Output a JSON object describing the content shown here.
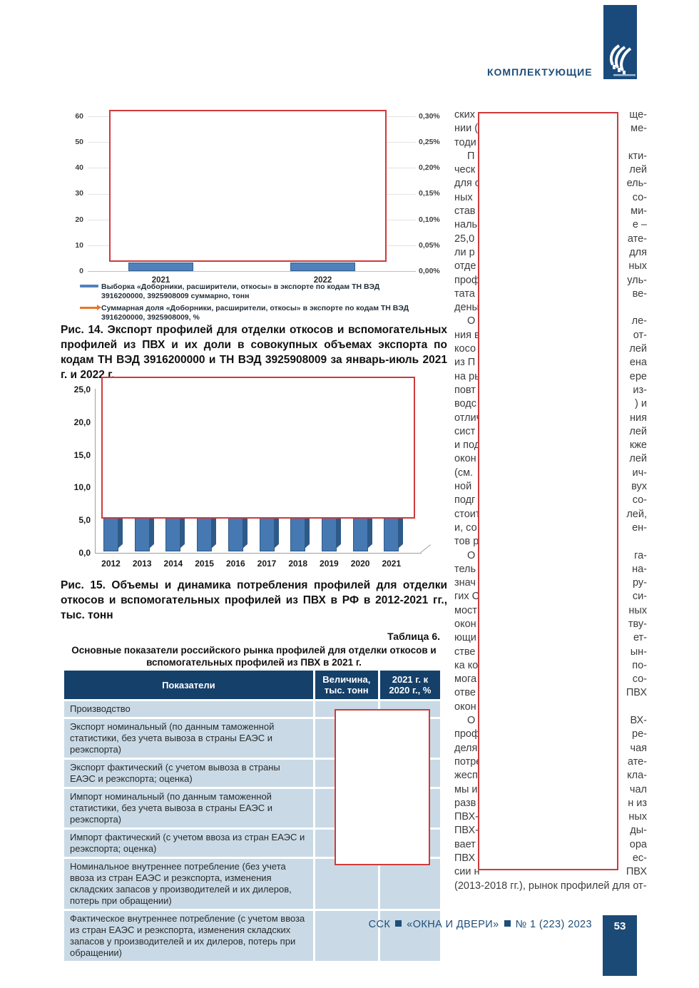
{
  "header": {
    "section_label": "КОМПЛЕКТУЮЩИЕ",
    "logo_color": "#1a4a7c"
  },
  "figure14": {
    "caption": "Рис. 14. Экспорт профилей для отделки откосов и вспомогательных профилей из ПВХ и их доли в совокупных объемах экспорта по кодам ТН ВЭД 3916200000 и ТН ВЭД 3925908009 за январь-июль 2021 г. и 2022 г.",
    "left_ticks": [
      "60",
      "50",
      "40",
      "30",
      "20",
      "10",
      "0"
    ],
    "right_ticks": [
      "0,30%",
      "0,25%",
      "0,20%",
      "0,15%",
      "0,10%",
      "0,05%",
      "0,00%"
    ],
    "categories": [
      "2021",
      "2022"
    ],
    "legend_items": [
      {
        "marker": "bar-marker-icon",
        "color": "#4f81bd",
        "label": "Выборка «Доборники, расширители, откосы» в экспорте по кодам ТН ВЭД 3916200000, 3925908009 суммарно, тонн"
      },
      {
        "marker": "line-arrow-marker-icon",
        "color": "#e8762c",
        "label": "Суммарная доля «Доборники, расширители, откосы» в экспорте по кодам ТН ВЭД 3916200000, 3925908009, %"
      }
    ]
  },
  "figure15": {
    "caption": "Рис. 15. Объемы и динамика потребления профилей для отделки откосов и вспомогательных профилей из ПВХ в РФ в 2012-2021 гг., тыс. тонн",
    "y_ticks": [
      "25,0",
      "20,0",
      "15,0",
      "10,0",
      "5,0",
      "0,0"
    ],
    "categories": [
      "2012",
      "2013",
      "2014",
      "2015",
      "2016",
      "2017",
      "2018",
      "2019",
      "2020",
      "2021"
    ]
  },
  "chart_data": [
    {
      "type": "bar",
      "figure": "Рис. 14",
      "title": "Экспорт профилей для отделки откосов и вспомогательных профилей из ПВХ и их доли в совокупных объемах экспорта по кодам ТН ВЭД 3916200000 и ТН ВЭД 3925908009 за январь-июль 2021 г. и 2022 г.",
      "categories": [
        "2021",
        "2022"
      ],
      "series": [
        {
          "name": "Выборка «Доборники, расширители, откосы» в экспорте по кодам ТН ВЭД 3916200000, 3925908009 суммарно, тонн",
          "type": "bar",
          "color": "#4f81bd",
          "values": [
            null,
            null
          ],
          "note": "значения скрыты красной рамкой (redacted)"
        },
        {
          "name": "Суммарная доля «Доборники, расширители, откосы» в экспорте по кодам ТН ВЭД 3916200000, 3925908009, %",
          "type": "line",
          "color": "#e8762c",
          "values": [
            null,
            null
          ],
          "note": "линия скрыта красной рамкой (redacted)"
        }
      ],
      "left_axis": {
        "ticks": [
          0,
          10,
          20,
          30,
          40,
          50,
          60
        ],
        "ylim": [
          0,
          60
        ]
      },
      "right_axis": {
        "ticks": [
          "0,00%",
          "0,05%",
          "0,10%",
          "0,15%",
          "0,20%",
          "0,25%",
          "0,30%"
        ],
        "ylim_pct": [
          0,
          0.3
        ]
      },
      "grid": true,
      "legend_position": "bottom"
    },
    {
      "type": "bar",
      "figure": "Рис. 15",
      "title": "Объемы и динамика потребления профилей для отделки откосов и вспомогательных профилей из ПВХ в РФ в 2012-2021 гг., тыс. тонн",
      "categories": [
        "2012",
        "2013",
        "2014",
        "2015",
        "2016",
        "2017",
        "2018",
        "2019",
        "2020",
        "2021"
      ],
      "values": [
        null,
        null,
        null,
        null,
        null,
        null,
        null,
        null,
        null,
        null
      ],
      "note": "верхние части всех столбцов скрыты красной рамкой (redacted); видимые основания всех столбцов превышают ~4,8",
      "ylabel": "тыс. тонн",
      "ylim": [
        0,
        25
      ],
      "yticks": [
        "0,0",
        "5,0",
        "10,0",
        "15,0",
        "20,0",
        "25,0"
      ],
      "style": "3d-bars",
      "grid": false
    }
  ],
  "table6": {
    "label": "Таблица 6.",
    "title": "Основные показатели российского рынка профилей для отделки откосов и вспомогательных профилей из ПВХ в 2021 г.",
    "columns": [
      "Показатели",
      "Величина, тыс. тонн",
      "2021 г. к 2020 г., %"
    ],
    "rows": [
      {
        "label": "Производство",
        "value": null,
        "pct": null
      },
      {
        "label": "Экспорт номинальный (по данным таможенной статистики, без учета вывоза в страны ЕАЭС и реэкспорта)",
        "value": null,
        "pct": null
      },
      {
        "label": "Экспорт фактический (с учетом вывоза в страны ЕАЭС и реэкспорта; оценка)",
        "value": null,
        "pct": null
      },
      {
        "label": "Импорт номинальный (по данным таможенной статистики, без учета вывоза в страны ЕАЭС и реэкспорта)",
        "value": null,
        "pct": null
      },
      {
        "label": "Импорт фактический (с учетом ввоза из стран ЕАЭС и реэкспорта; оценка)",
        "value": null,
        "pct": null
      },
      {
        "label": "Номинальное внутреннее потребление (без учета ввоза из стран ЕАЭС и реэкспорта, изменения складских запасов у производителей и их дилеров, потерь при обращении)",
        "value": null,
        "pct": null
      },
      {
        "label": "Фактическое внутреннее потребление (с учетом ввоза из стран ЕАЭС и реэкспорта, изменения складских запасов у производителей и их дилеров, потерь при обращении)",
        "value": null,
        "pct": null
      }
    ],
    "values_note": "столбцы значений скрыты красной рамкой (redacted)"
  },
  "right_column": {
    "note": "текст колонки частично скрыт красной рамкой; видны только фрагменты строк",
    "lines": [
      {
        "l": "ских",
        "r": "ще-"
      },
      {
        "l": "нии (",
        "r": "ме-"
      },
      {
        "l": "тоди",
        "r": ""
      },
      {
        "l": "П",
        "r": "кти-",
        "indent": true
      },
      {
        "l": "ческ",
        "r": "лей"
      },
      {
        "l": "для с",
        "r": "ель-"
      },
      {
        "l": "ных",
        "r": "со-"
      },
      {
        "l": "став",
        "r": "ми-"
      },
      {
        "l": "наль",
        "r": "е –"
      },
      {
        "l": "25,0",
        "r": "ате-"
      },
      {
        "l": "ли р",
        "r": "для"
      },
      {
        "l": "отде",
        "r": "ных"
      },
      {
        "l": "проф",
        "r": "уль-"
      },
      {
        "l": "тата",
        "r": "ве-"
      },
      {
        "l": "дены",
        "r": ""
      },
      {
        "l": "О",
        "r": "ле-",
        "indent": true
      },
      {
        "l": "ния в",
        "r": "от-"
      },
      {
        "l": "косо",
        "r": "лей"
      },
      {
        "l": "из П",
        "r": "ена"
      },
      {
        "l": "на ры",
        "r": "ере"
      },
      {
        "l": "повт",
        "r": "из-"
      },
      {
        "l": "водс",
        "r": ") и"
      },
      {
        "l": "отлич",
        "r": "ния"
      },
      {
        "l": "сист",
        "r": "лей"
      },
      {
        "l": "и под",
        "r": "кже"
      },
      {
        "l": "окон",
        "r": "лей"
      },
      {
        "l": "(см.",
        "r": "ич-"
      },
      {
        "l": "ной",
        "r": "вух"
      },
      {
        "l": "подг",
        "r": "со-"
      },
      {
        "l": "стоит",
        "r": "лей,"
      },
      {
        "l": "и, со",
        "r": "ен-"
      },
      {
        "l": "тов р",
        "r": ""
      },
      {
        "l": "О",
        "r": "га-",
        "indent": true
      },
      {
        "l": "тель",
        "r": "на-"
      },
      {
        "l": "знач",
        "r": "ру-"
      },
      {
        "l": "гих С",
        "r": "си-"
      },
      {
        "l": "мост",
        "r": "ных"
      },
      {
        "l": "окон",
        "r": "тву-"
      },
      {
        "l": "ющи",
        "r": "ет-"
      },
      {
        "l": "стве",
        "r": "ын-"
      },
      {
        "l": "ка ко",
        "r": "по-"
      },
      {
        "l": "мога",
        "r": "со-"
      },
      {
        "l": "отве",
        "r": "ПВХ"
      },
      {
        "l": "окон",
        "r": ""
      },
      {
        "l": "О",
        "r": "ВХ-",
        "indent": true
      },
      {
        "l": "проф",
        "r": "ре-"
      },
      {
        "l": "деля",
        "r": "чая"
      },
      {
        "l": "потре",
        "r": "ате-"
      },
      {
        "l": "жесп",
        "r": "кла-"
      },
      {
        "l": "мы и",
        "r": "чал"
      },
      {
        "l": "разв",
        "r": "н из"
      },
      {
        "l": "ПВХ-",
        "r": "ных"
      },
      {
        "l": "ПВХ-",
        "r": "ды-"
      },
      {
        "l": "вает",
        "r": "ора"
      },
      {
        "l": "ПВХ",
        "r": "ес-"
      },
      {
        "l": "сии н",
        "r": "ПВХ"
      },
      {
        "l": "(2013-2018 гг.), рынок профилей для от-",
        "r": "",
        "full": true
      }
    ]
  },
  "footer": {
    "journal": "ССК",
    "title": "«ОКНА И ДВЕРИ»",
    "issue": "№ 1 (223) 2023",
    "page_number": "53"
  }
}
